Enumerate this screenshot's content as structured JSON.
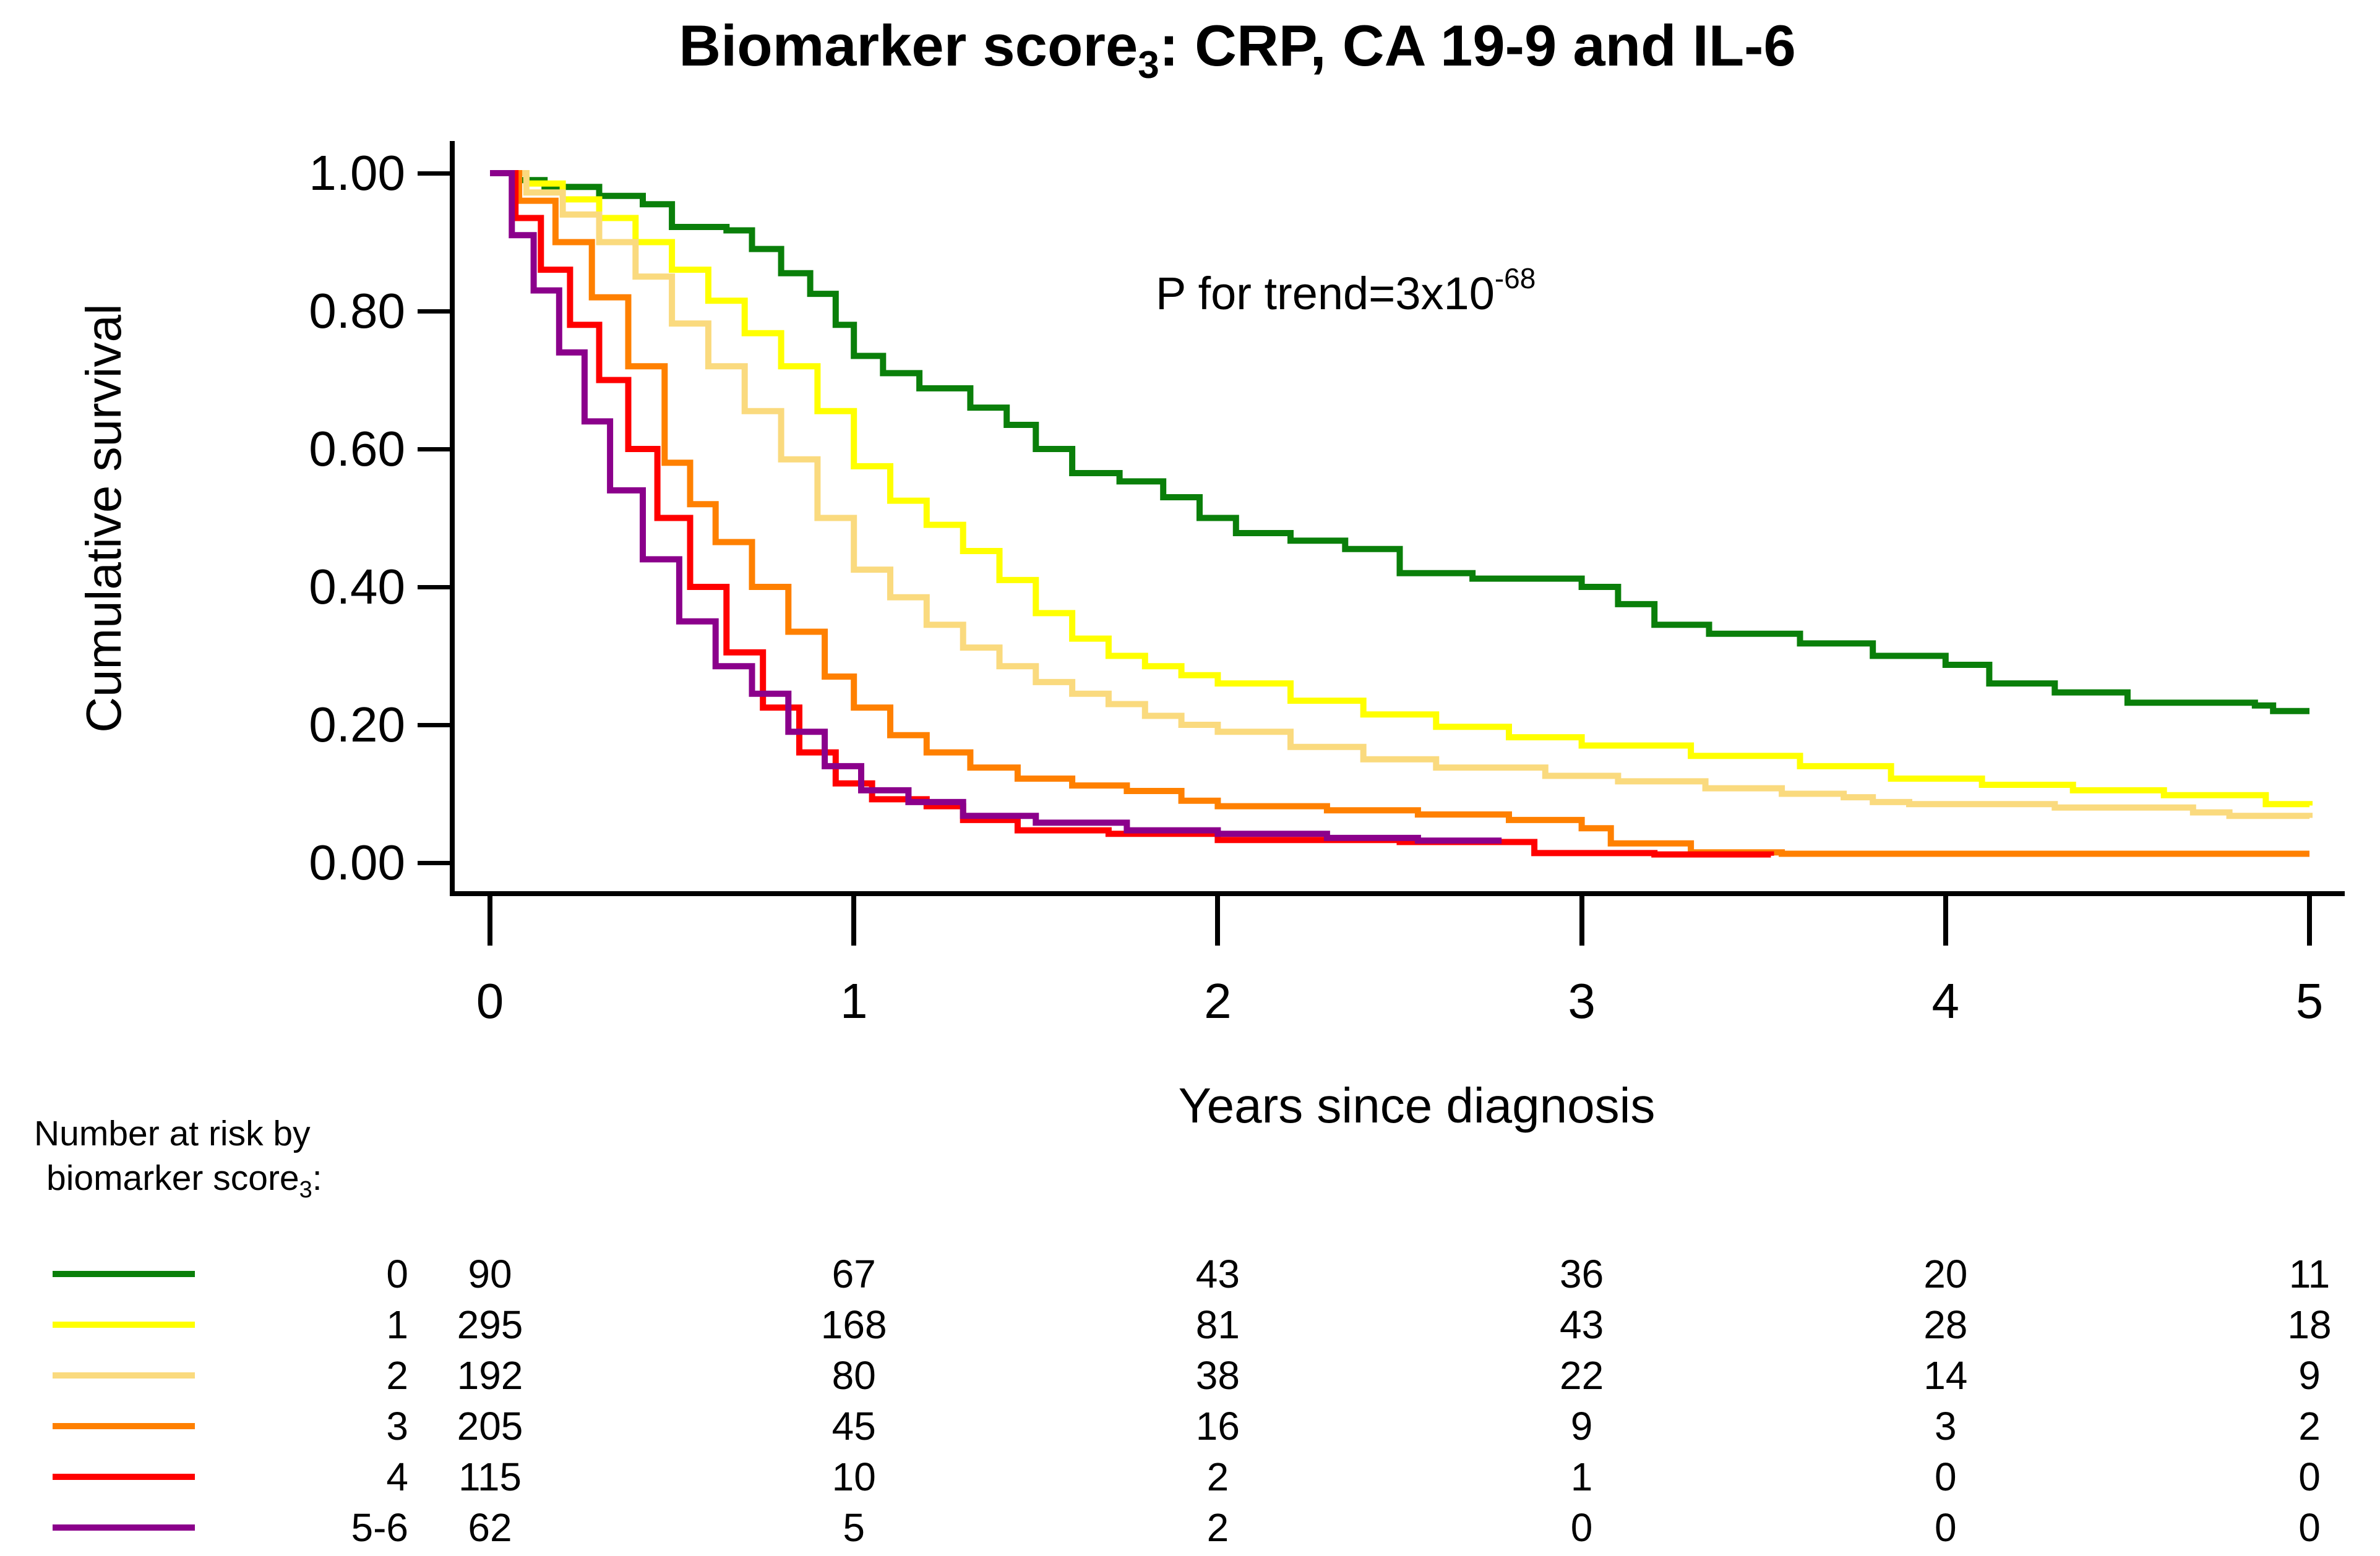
{
  "title": {
    "prefix": "Biomarker score",
    "subscript": "3",
    "suffix": ": CRP, CA 19-9 and IL-6"
  },
  "annotation": {
    "base": "P for trend=3x10",
    "exponent": "-68"
  },
  "axes": {
    "y": {
      "title": "Cumulative survival",
      "ticks": [
        {
          "label": "1.00",
          "value": 1.0
        },
        {
          "label": "0.80",
          "value": 0.8
        },
        {
          "label": "0.60",
          "value": 0.6
        },
        {
          "label": "0.40",
          "value": 0.4
        },
        {
          "label": "0.20",
          "value": 0.2
        },
        {
          "label": "0.00",
          "value": 0.0
        }
      ]
    },
    "x": {
      "title": "Years since diagnosis",
      "ticks": [
        {
          "label": "0",
          "value": 0
        },
        {
          "label": "1",
          "value": 1
        },
        {
          "label": "2",
          "value": 2
        },
        {
          "label": "3",
          "value": 3
        },
        {
          "label": "4",
          "value": 4
        },
        {
          "label": "5",
          "value": 5
        }
      ]
    }
  },
  "at_risk": {
    "header_line1": "Number at risk by",
    "header_line2_prefix": "biomarker score",
    "header_line2_sub": "3",
    "header_line2_suffix": ":",
    "rows": [
      {
        "score": "0",
        "counts": [
          "90",
          "67",
          "43",
          "36",
          "20",
          "11"
        ]
      },
      {
        "score": "1",
        "counts": [
          "295",
          "168",
          "81",
          "43",
          "28",
          "18"
        ]
      },
      {
        "score": "2",
        "counts": [
          "192",
          "80",
          "38",
          "22",
          "14",
          "9"
        ]
      },
      {
        "score": "3",
        "counts": [
          "205",
          "45",
          "16",
          "9",
          "3",
          "2"
        ]
      },
      {
        "score": "4",
        "counts": [
          "115",
          "10",
          "2",
          "1",
          "0",
          "0"
        ]
      },
      {
        "score": "5-6",
        "counts": [
          "62",
          "5",
          "2",
          "0",
          "0",
          "0"
        ]
      }
    ]
  },
  "chart_data": {
    "type": "line",
    "step": true,
    "title": "Biomarker score3: CRP, CA 19-9 and IL-6",
    "xlabel": "Years since diagnosis",
    "ylabel": "Cumulative survival",
    "xlim": [
      0,
      5
    ],
    "ylim": [
      0,
      1
    ],
    "grid": false,
    "annotation": "P for trend=3x10^-68",
    "legend_position": "bottom-left with number-at-risk table",
    "series": [
      {
        "name": "Score 0",
        "color": "#0A7F0A",
        "points": [
          [
            0,
            1
          ],
          [
            0.07,
            0.99
          ],
          [
            0.15,
            0.98
          ],
          [
            0.3,
            0.967
          ],
          [
            0.42,
            0.955
          ],
          [
            0.5,
            0.922
          ],
          [
            0.65,
            0.917
          ],
          [
            0.72,
            0.89
          ],
          [
            0.8,
            0.855
          ],
          [
            0.88,
            0.825
          ],
          [
            0.95,
            0.78
          ],
          [
            1.0,
            0.735
          ],
          [
            1.08,
            0.71
          ],
          [
            1.18,
            0.688
          ],
          [
            1.32,
            0.66
          ],
          [
            1.42,
            0.635
          ],
          [
            1.5,
            0.6
          ],
          [
            1.6,
            0.565
          ],
          [
            1.73,
            0.553
          ],
          [
            1.85,
            0.53
          ],
          [
            1.95,
            0.5
          ],
          [
            2.05,
            0.478
          ],
          [
            2.2,
            0.467
          ],
          [
            2.35,
            0.455
          ],
          [
            2.5,
            0.42
          ],
          [
            2.7,
            0.412
          ],
          [
            3.0,
            0.4
          ],
          [
            3.1,
            0.375
          ],
          [
            3.2,
            0.345
          ],
          [
            3.35,
            0.332
          ],
          [
            3.6,
            0.318
          ],
          [
            3.8,
            0.3
          ],
          [
            4.0,
            0.287
          ],
          [
            4.12,
            0.26
          ],
          [
            4.3,
            0.247
          ],
          [
            4.5,
            0.232
          ],
          [
            4.85,
            0.228
          ],
          [
            4.9,
            0.22
          ],
          [
            5.0,
            0.22
          ]
        ]
      },
      {
        "name": "Score 1",
        "color": "#FFFF00",
        "points": [
          [
            0,
            1
          ],
          [
            0.1,
            0.985
          ],
          [
            0.2,
            0.962
          ],
          [
            0.3,
            0.935
          ],
          [
            0.4,
            0.9
          ],
          [
            0.5,
            0.86
          ],
          [
            0.6,
            0.815
          ],
          [
            0.7,
            0.768
          ],
          [
            0.8,
            0.72
          ],
          [
            0.9,
            0.655
          ],
          [
            1.0,
            0.575
          ],
          [
            1.1,
            0.525
          ],
          [
            1.2,
            0.49
          ],
          [
            1.3,
            0.452
          ],
          [
            1.4,
            0.41
          ],
          [
            1.5,
            0.362
          ],
          [
            1.6,
            0.325
          ],
          [
            1.7,
            0.3
          ],
          [
            1.8,
            0.285
          ],
          [
            1.9,
            0.272
          ],
          [
            2.0,
            0.26
          ],
          [
            2.2,
            0.235
          ],
          [
            2.4,
            0.215
          ],
          [
            2.6,
            0.197
          ],
          [
            2.8,
            0.182
          ],
          [
            3.0,
            0.17
          ],
          [
            3.3,
            0.155
          ],
          [
            3.6,
            0.14
          ],
          [
            3.85,
            0.122
          ],
          [
            4.1,
            0.113
          ],
          [
            4.35,
            0.105
          ],
          [
            4.6,
            0.098
          ],
          [
            4.88,
            0.085
          ],
          [
            5.0,
            0.083
          ]
        ]
      },
      {
        "name": "Score 2",
        "color": "#FADA7E",
        "points": [
          [
            0,
            1
          ],
          [
            0.1,
            0.972
          ],
          [
            0.2,
            0.94
          ],
          [
            0.3,
            0.9
          ],
          [
            0.4,
            0.85
          ],
          [
            0.5,
            0.782
          ],
          [
            0.6,
            0.72
          ],
          [
            0.7,
            0.655
          ],
          [
            0.8,
            0.585
          ],
          [
            0.9,
            0.5
          ],
          [
            1.0,
            0.425
          ],
          [
            1.1,
            0.385
          ],
          [
            1.2,
            0.345
          ],
          [
            1.3,
            0.312
          ],
          [
            1.4,
            0.285
          ],
          [
            1.5,
            0.262
          ],
          [
            1.6,
            0.245
          ],
          [
            1.7,
            0.23
          ],
          [
            1.8,
            0.213
          ],
          [
            1.9,
            0.2
          ],
          [
            2.0,
            0.19
          ],
          [
            2.2,
            0.168
          ],
          [
            2.4,
            0.15
          ],
          [
            2.6,
            0.138
          ],
          [
            2.9,
            0.126
          ],
          [
            3.1,
            0.118
          ],
          [
            3.34,
            0.108
          ],
          [
            3.55,
            0.1
          ],
          [
            3.72,
            0.095
          ],
          [
            3.8,
            0.088
          ],
          [
            3.9,
            0.085
          ],
          [
            4.3,
            0.08
          ],
          [
            4.68,
            0.073
          ],
          [
            4.78,
            0.068
          ],
          [
            5.0,
            0.065
          ]
        ]
      },
      {
        "name": "Score 3",
        "color": "#FF8000",
        "points": [
          [
            0,
            1
          ],
          [
            0.08,
            0.96
          ],
          [
            0.18,
            0.9
          ],
          [
            0.28,
            0.82
          ],
          [
            0.38,
            0.72
          ],
          [
            0.48,
            0.58
          ],
          [
            0.55,
            0.52
          ],
          [
            0.62,
            0.465
          ],
          [
            0.72,
            0.4
          ],
          [
            0.82,
            0.335
          ],
          [
            0.92,
            0.27
          ],
          [
            1.0,
            0.225
          ],
          [
            1.1,
            0.185
          ],
          [
            1.2,
            0.16
          ],
          [
            1.32,
            0.138
          ],
          [
            1.45,
            0.122
          ],
          [
            1.6,
            0.112
          ],
          [
            1.75,
            0.104
          ],
          [
            1.9,
            0.09
          ],
          [
            2.0,
            0.082
          ],
          [
            2.3,
            0.076
          ],
          [
            2.55,
            0.07
          ],
          [
            2.8,
            0.062
          ],
          [
            3.0,
            0.05
          ],
          [
            3.08,
            0.028
          ],
          [
            3.3,
            0.015
          ],
          [
            3.55,
            0.013
          ],
          [
            5.0,
            0.013
          ]
        ]
      },
      {
        "name": "Score 4",
        "color": "#FF0000",
        "points": [
          [
            0,
            1
          ],
          [
            0.07,
            0.935
          ],
          [
            0.14,
            0.86
          ],
          [
            0.22,
            0.78
          ],
          [
            0.3,
            0.7
          ],
          [
            0.38,
            0.6
          ],
          [
            0.46,
            0.5
          ],
          [
            0.55,
            0.4
          ],
          [
            0.65,
            0.305
          ],
          [
            0.75,
            0.225
          ],
          [
            0.85,
            0.16
          ],
          [
            0.95,
            0.115
          ],
          [
            1.05,
            0.092
          ],
          [
            1.2,
            0.082
          ],
          [
            1.3,
            0.062
          ],
          [
            1.45,
            0.047
          ],
          [
            1.7,
            0.042
          ],
          [
            2.0,
            0.033
          ],
          [
            2.5,
            0.03
          ],
          [
            2.87,
            0.014
          ],
          [
            3.2,
            0.012
          ],
          [
            3.52,
            0.01
          ]
        ]
      },
      {
        "name": "Score 5-6",
        "color": "#8B008B",
        "points": [
          [
            0,
            1
          ],
          [
            0.06,
            0.91
          ],
          [
            0.12,
            0.83
          ],
          [
            0.19,
            0.74
          ],
          [
            0.26,
            0.64
          ],
          [
            0.33,
            0.54
          ],
          [
            0.42,
            0.44
          ],
          [
            0.52,
            0.35
          ],
          [
            0.62,
            0.285
          ],
          [
            0.72,
            0.245
          ],
          [
            0.82,
            0.19
          ],
          [
            0.92,
            0.14
          ],
          [
            1.02,
            0.105
          ],
          [
            1.15,
            0.088
          ],
          [
            1.3,
            0.068
          ],
          [
            1.5,
            0.058
          ],
          [
            1.75,
            0.047
          ],
          [
            2.0,
            0.042
          ],
          [
            2.3,
            0.036
          ],
          [
            2.55,
            0.032
          ],
          [
            2.78,
            0.032
          ]
        ]
      }
    ],
    "number_at_risk": {
      "times": [
        0,
        1,
        2,
        3,
        4,
        5
      ],
      "groups": [
        {
          "label": "0",
          "n": [
            90,
            67,
            43,
            36,
            20,
            11
          ]
        },
        {
          "label": "1",
          "n": [
            295,
            168,
            81,
            43,
            28,
            18
          ]
        },
        {
          "label": "2",
          "n": [
            192,
            80,
            38,
            22,
            14,
            9
          ]
        },
        {
          "label": "3",
          "n": [
            205,
            45,
            16,
            9,
            3,
            2
          ]
        },
        {
          "label": "4",
          "n": [
            115,
            10,
            2,
            1,
            0,
            0
          ]
        },
        {
          "label": "5-6",
          "n": [
            62,
            5,
            2,
            0,
            0,
            0
          ]
        }
      ]
    }
  }
}
